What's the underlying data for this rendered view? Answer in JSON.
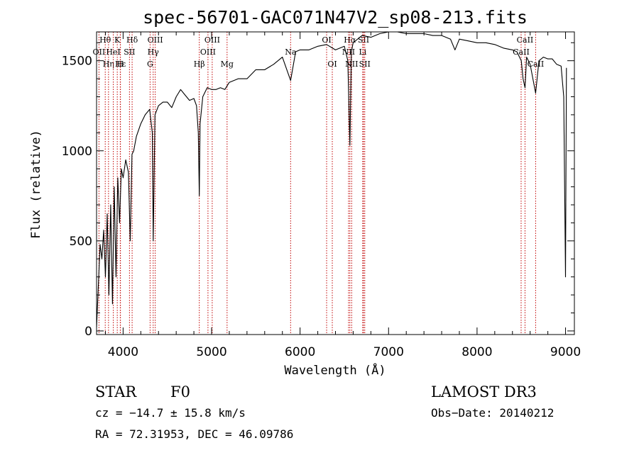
{
  "chart_data": {
    "type": "line",
    "title": "spec-56701-GAC071N47V2_sp08-213.fits",
    "xlabel": "Wavelength (Å)",
    "ylabel": "Flux (relative)",
    "xlim": [
      3700,
      9100
    ],
    "ylim": [
      -20,
      1660
    ],
    "x_ticks": [
      "4000",
      "5000",
      "6000",
      "7000",
      "8000",
      "9000"
    ],
    "y_ticks": [
      "0",
      "500",
      "1000",
      "1500"
    ],
    "series": [
      {
        "x": [
          3700,
          3720,
          3740,
          3760,
          3780,
          3800,
          3820,
          3840,
          3860,
          3880,
          3900,
          3920,
          3940,
          3960,
          3980,
          4000,
          4030,
          4060,
          4080,
          4100,
          4120,
          4150,
          4200,
          4250,
          4300,
          4330,
          4340,
          4360,
          4400,
          4450,
          4500,
          4550,
          4600,
          4650,
          4700,
          4750,
          4800,
          4830,
          4850,
          4861,
          4870,
          4900,
          4950,
          5000,
          5050,
          5100,
          5150,
          5200,
          5300,
          5400,
          5500,
          5600,
          5700,
          5800,
          5893,
          5950,
          6000,
          6100,
          6200,
          6300,
          6400,
          6500,
          6540,
          6563,
          6580,
          6600,
          6700,
          6800,
          6900,
          7000,
          7100,
          7200,
          7300,
          7400,
          7500,
          7600,
          7700,
          7750,
          7800,
          7900,
          8000,
          8100,
          8200,
          8300,
          8400,
          8450,
          8500,
          8520,
          8542,
          8560,
          8600,
          8662,
          8700,
          8750,
          8800,
          8850,
          8900,
          8950,
          8980,
          9000,
          9010
        ],
        "y": [
          20,
          250,
          480,
          400,
          560,
          300,
          650,
          200,
          700,
          150,
          800,
          300,
          850,
          600,
          900,
          850,
          950,
          880,
          500,
          980,
          1000,
          1080,
          1150,
          1200,
          1230,
          1100,
          500,
          1200,
          1250,
          1270,
          1270,
          1240,
          1300,
          1340,
          1310,
          1280,
          1290,
          1250,
          1100,
          750,
          1150,
          1300,
          1350,
          1340,
          1340,
          1350,
          1340,
          1380,
          1400,
          1400,
          1450,
          1450,
          1480,
          1520,
          1390,
          1550,
          1560,
          1560,
          1580,
          1590,
          1560,
          1580,
          1500,
          1030,
          1550,
          1600,
          1640,
          1630,
          1650,
          1660,
          1660,
          1650,
          1650,
          1650,
          1640,
          1640,
          1620,
          1560,
          1620,
          1610,
          1600,
          1600,
          1590,
          1570,
          1560,
          1550,
          1500,
          1400,
          1350,
          1520,
          1480,
          1320,
          1500,
          1520,
          1510,
          1510,
          1480,
          1470,
          1300,
          300,
          1460
        ]
      }
    ],
    "lines": [
      {
        "name": "Hθ",
        "x": 3798,
        "row": 1
      },
      {
        "name": "OII",
        "x": 3727,
        "row": 2
      },
      {
        "name": "Hη",
        "x": 3835,
        "row": 3
      },
      {
        "name": "K",
        "x": 3934,
        "row": 1
      },
      {
        "name": "HeI",
        "x": 3889,
        "row": 2
      },
      {
        "name": "Hε",
        "x": 3970,
        "row": 3
      },
      {
        "name": "H",
        "x": 3968,
        "row": 3
      },
      {
        "name": "Hδ",
        "x": 4102,
        "row": 1
      },
      {
        "name": "SII",
        "x": 4072,
        "row": 2
      },
      {
        "name": "OIII",
        "x": 4363,
        "row": 1
      },
      {
        "name": "Hγ",
        "x": 4340,
        "row": 2
      },
      {
        "name": "G",
        "x": 4305,
        "row": 3
      },
      {
        "name": "Hβ",
        "x": 4861,
        "row": 3
      },
      {
        "name": "OIII",
        "x": 5007,
        "row": 1
      },
      {
        "name": "OIII",
        "x": 4959,
        "row": 2
      },
      {
        "name": "Mg",
        "x": 5175,
        "row": 3
      },
      {
        "name": "Na",
        "x": 5893,
        "row": 2
      },
      {
        "name": "OI",
        "x": 6300,
        "row": 1
      },
      {
        "name": "OI",
        "x": 6364,
        "row": 3
      },
      {
        "name": "Hα",
        "x": 6563,
        "row": 1
      },
      {
        "name": "NII",
        "x": 6548,
        "row": 2
      },
      {
        "name": "NII",
        "x": 6583,
        "row": 3
      },
      {
        "name": "SII",
        "x": 6717,
        "row": 1
      },
      {
        "name": "Li",
        "x": 6708,
        "row": 2
      },
      {
        "name": "SII",
        "x": 6731,
        "row": 3
      },
      {
        "name": "CaII",
        "x": 8542,
        "row": 1
      },
      {
        "name": "CaII",
        "x": 8498,
        "row": 2
      },
      {
        "name": "CaII",
        "x": 8662,
        "row": 3
      }
    ],
    "grid": false
  },
  "info": {
    "object_class": "STAR",
    "subclass": "F0",
    "survey": "LAMOST DR3",
    "cz": "cz = −14.7 ± 15.8 km/s",
    "obs_date": "Obs−Date: 20140212",
    "coords": "RA =  72.31953, DEC =  46.09786"
  },
  "colors": {
    "spectrum": "#000000",
    "line_markers": "#c00000",
    "axes": "#000000"
  }
}
